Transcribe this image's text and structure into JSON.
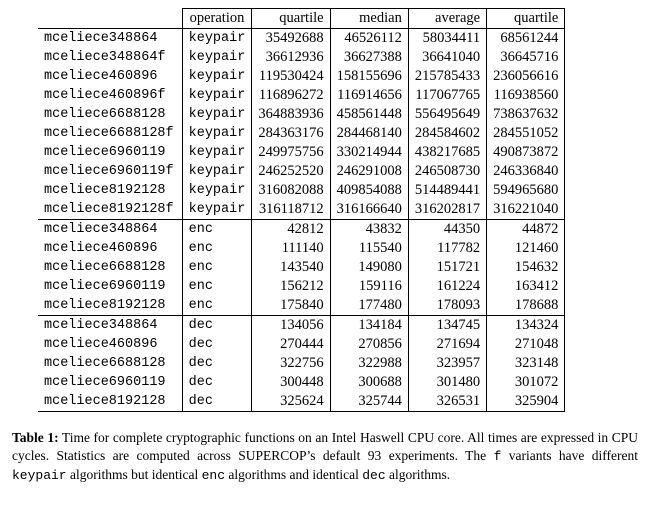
{
  "table": {
    "headers": [
      "",
      "operation",
      "quartile",
      "median",
      "average",
      "quartile"
    ],
    "groups": [
      {
        "rows": [
          [
            "mceliece348864",
            "keypair",
            "35492688",
            "46526112",
            "58034411",
            "68561244"
          ],
          [
            "mceliece348864f",
            "keypair",
            "36612936",
            "36627388",
            "36641040",
            "36645716"
          ],
          [
            "mceliece460896",
            "keypair",
            "119530424",
            "158155696",
            "215785433",
            "236056616"
          ],
          [
            "mceliece460896f",
            "keypair",
            "116896272",
            "116914656",
            "117067765",
            "116938560"
          ],
          [
            "mceliece6688128",
            "keypair",
            "364883936",
            "458561448",
            "556495649",
            "738637632"
          ],
          [
            "mceliece6688128f",
            "keypair",
            "284363176",
            "284468140",
            "284584602",
            "284551052"
          ],
          [
            "mceliece6960119",
            "keypair",
            "249975756",
            "330214944",
            "438217685",
            "490873872"
          ],
          [
            "mceliece6960119f",
            "keypair",
            "246252520",
            "246291008",
            "246508730",
            "246336840"
          ],
          [
            "mceliece8192128",
            "keypair",
            "316082088",
            "409854088",
            "514489441",
            "594965680"
          ],
          [
            "mceliece8192128f",
            "keypair",
            "316118712",
            "316166640",
            "316202817",
            "316221040"
          ]
        ]
      },
      {
        "rows": [
          [
            "mceliece348864",
            "enc",
            "42812",
            "43832",
            "44350",
            "44872"
          ],
          [
            "mceliece460896",
            "enc",
            "111140",
            "115540",
            "117782",
            "121460"
          ],
          [
            "mceliece6688128",
            "enc",
            "143540",
            "149080",
            "151721",
            "154632"
          ],
          [
            "mceliece6960119",
            "enc",
            "156212",
            "159116",
            "161224",
            "163412"
          ],
          [
            "mceliece8192128",
            "enc",
            "175840",
            "177480",
            "178093",
            "178688"
          ]
        ]
      },
      {
        "rows": [
          [
            "mceliece348864",
            "dec",
            "134056",
            "134184",
            "134745",
            "134324"
          ],
          [
            "mceliece460896",
            "dec",
            "270444",
            "270856",
            "271694",
            "271048"
          ],
          [
            "mceliece6688128",
            "dec",
            "322756",
            "322988",
            "323957",
            "323148"
          ],
          [
            "mceliece6960119",
            "dec",
            "300448",
            "300688",
            "301480",
            "301072"
          ],
          [
            "mceliece8192128",
            "dec",
            "325624",
            "325744",
            "326531",
            "325904"
          ]
        ]
      }
    ]
  },
  "caption": {
    "label": "Table 1:",
    "sentence1": " Time for complete cryptographic functions on an Intel Haswell CPU core. All times are expressed in CPU cycles. Statistics are computed across SUPERCOP’s default 93 experiments. The ",
    "code_f": "f",
    "sentence2": " variants have different ",
    "code_keypair": "keypair",
    "sentence3": " algorithms but identical ",
    "code_enc": "enc",
    "sentence4": " algorithms and identical ",
    "code_dec": "dec",
    "sentence5": " algorithms."
  }
}
